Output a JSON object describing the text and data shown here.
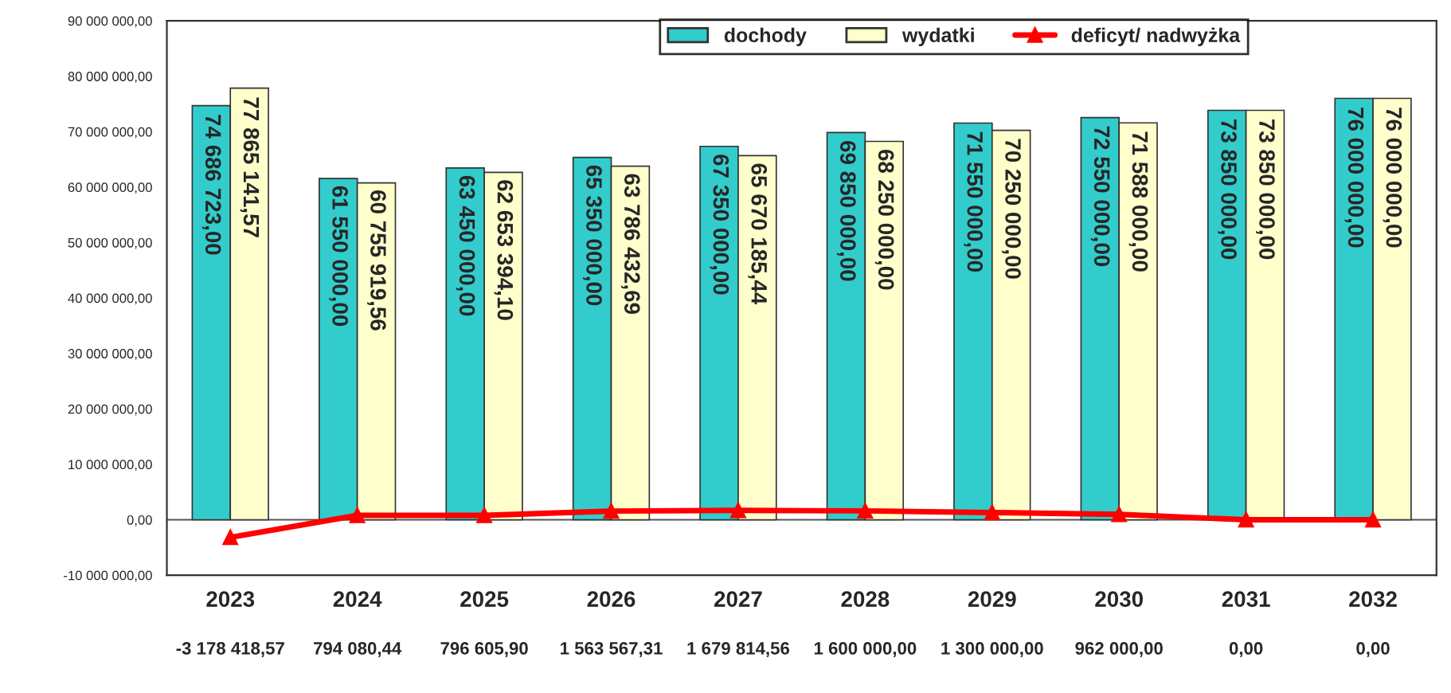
{
  "chart_data": {
    "type": "bar",
    "categories": [
      "2023",
      "2024",
      "2025",
      "2026",
      "2027",
      "2028",
      "2029",
      "2030",
      "2031",
      "2032"
    ],
    "series": [
      {
        "name": "dochody",
        "color": "#33cccc",
        "values": [
          74686723.0,
          61550000.0,
          63450000.0,
          65350000.0,
          67350000.0,
          69850000.0,
          71550000.0,
          72550000.0,
          73850000.0,
          76000000.0
        ],
        "value_labels": [
          "74 686 723,00",
          "61 550 000,00",
          "63 450 000,00",
          "65 350 000,00",
          "67 350 000,00",
          "69 850 000,00",
          "71 550 000,00",
          "72 550 000,00",
          "73 850 000,00",
          "76 000 000,00"
        ]
      },
      {
        "name": "wydatki",
        "color": "#ffffcc",
        "values": [
          77865141.57,
          60755919.56,
          62653394.1,
          63786432.69,
          65670185.44,
          68250000.0,
          70250000.0,
          71588000.0,
          73850000.0,
          76000000.0
        ],
        "value_labels": [
          "77 865 141,57",
          "60 755 919,56",
          "62 653 394,10",
          "63 786 432,69",
          "65 670 185,44",
          "68 250 000,00",
          "70 250 000,00",
          "71 588 000,00",
          "73 850 000,00",
          "76 000 000,00"
        ]
      },
      {
        "name": "deficyt/ nadwyżka",
        "type": "line",
        "color": "#ff0000",
        "marker": "triangle",
        "values": [
          -3178418.57,
          794080.44,
          796605.9,
          1563567.31,
          1679814.56,
          1600000.0,
          1300000.0,
          962000.0,
          0.0,
          0.0
        ],
        "value_labels": [
          "-3 178 418,57",
          "794 080,44",
          "796 605,90",
          "1 563 567,31",
          "1 679 814,56",
          "1 600 000,00",
          "1 300 000,00",
          "962 000,00",
          "0,00",
          "0,00"
        ]
      }
    ],
    "ylim": [
      -10000000,
      90000000
    ],
    "yticks": [
      {
        "value": -10000000,
        "label": "-10 000 000,00"
      },
      {
        "value": 0,
        "label": "0,00"
      },
      {
        "value": 10000000,
        "label": "10 000 000,00"
      },
      {
        "value": 20000000,
        "label": "20 000 000,00"
      },
      {
        "value": 30000000,
        "label": "30 000 000,00"
      },
      {
        "value": 40000000,
        "label": "40 000 000,00"
      },
      {
        "value": 50000000,
        "label": "50 000 000,00"
      },
      {
        "value": 60000000,
        "label": "60 000 000,00"
      },
      {
        "value": 70000000,
        "label": "70 000 000,00"
      },
      {
        "value": 80000000,
        "label": "80 000 000,00"
      },
      {
        "value": 90000000,
        "label": "90 000 000,00"
      }
    ],
    "ref_lines": [
      {
        "axis": "y",
        "value": 0
      }
    ],
    "legend": "top"
  }
}
